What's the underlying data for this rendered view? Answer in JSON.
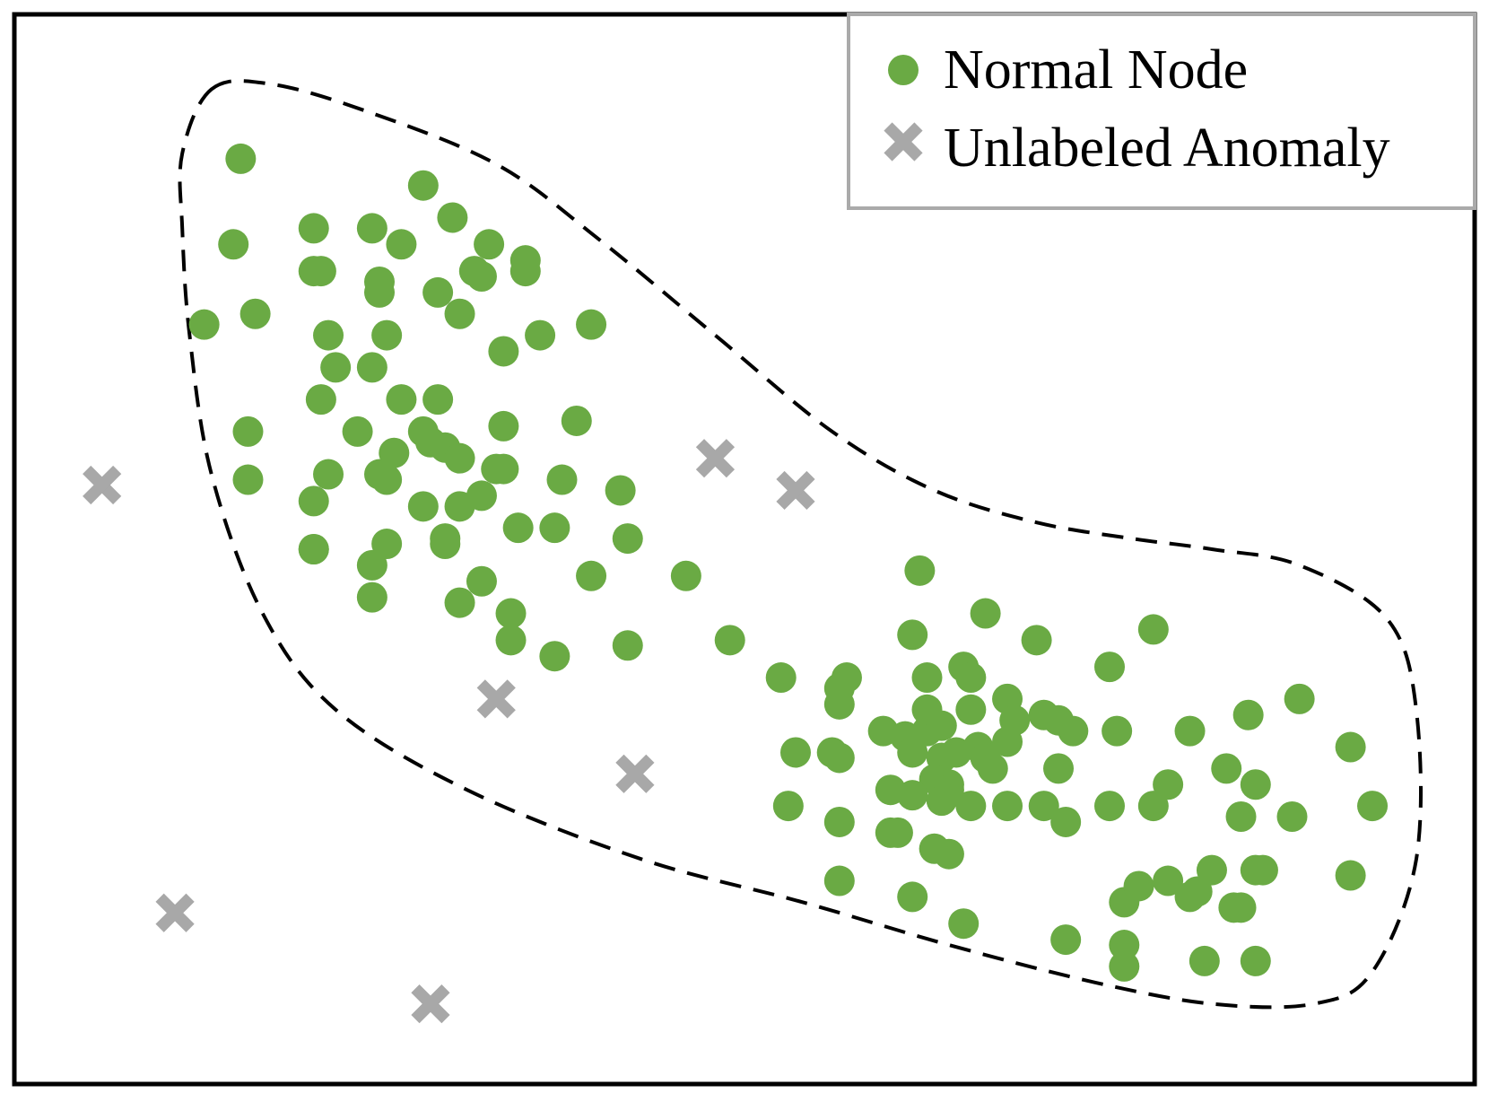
{
  "chart_data": {
    "type": "scatter",
    "title": "",
    "xlabel": "",
    "ylabel": "",
    "xlim": [
      0,
      100
    ],
    "ylim": [
      0,
      100
    ],
    "grid": false,
    "legend_position": "top-right",
    "colors": {
      "normal": "#6aaa44",
      "anomaly": "#a8a8a8",
      "boundary": "#000000",
      "frame": "#000000",
      "legend_border": "#aaaaaa"
    },
    "boundary": {
      "style": "dashed",
      "description": "normal region",
      "points": [
        [
          13.5,
          93
        ],
        [
          17.5,
          93.5
        ],
        [
          24,
          91
        ],
        [
          33,
          86
        ],
        [
          40,
          79
        ],
        [
          48,
          70
        ],
        [
          56,
          61
        ],
        [
          63,
          55.5
        ],
        [
          70,
          52.5
        ],
        [
          76.5,
          51
        ],
        [
          82,
          50
        ],
        [
          88,
          48.5
        ],
        [
          94,
          43.5
        ],
        [
          96,
          35
        ],
        [
          96,
          21
        ],
        [
          93,
          10.5
        ],
        [
          89,
          7.5
        ],
        [
          82,
          7.5
        ],
        [
          74,
          9.5
        ],
        [
          64,
          13
        ],
        [
          54,
          17
        ],
        [
          43,
          21
        ],
        [
          31,
          27.5
        ],
        [
          22,
          35
        ],
        [
          17,
          44
        ],
        [
          13.5,
          57
        ],
        [
          12,
          70
        ],
        [
          11.5,
          80
        ],
        [
          11.5,
          87
        ]
      ]
    },
    "series": [
      {
        "name": "Normal Node",
        "marker": "circle",
        "points": [
          [
            15.5,
            86.5
          ],
          [
            15,
            78.5
          ],
          [
            20.5,
            80
          ],
          [
            16.5,
            72
          ],
          [
            13,
            71
          ],
          [
            21,
            76
          ],
          [
            25,
            75
          ],
          [
            20.5,
            76
          ],
          [
            21.5,
            70
          ],
          [
            22,
            67
          ],
          [
            24.5,
            80
          ],
          [
            26.5,
            78.5
          ],
          [
            25,
            74
          ],
          [
            25.5,
            70
          ],
          [
            24.5,
            67
          ],
          [
            28,
            84
          ],
          [
            30,
            81
          ],
          [
            29,
            74
          ],
          [
            30.5,
            72
          ],
          [
            32.5,
            78.5
          ],
          [
            31.5,
            76
          ],
          [
            32,
            75.5
          ],
          [
            35,
            77
          ],
          [
            36,
            70
          ],
          [
            33.5,
            68.5
          ],
          [
            35,
            76
          ],
          [
            39.5,
            71
          ],
          [
            21,
            64
          ],
          [
            23.5,
            61
          ],
          [
            26.5,
            64
          ],
          [
            29,
            64
          ],
          [
            28,
            61
          ],
          [
            28.5,
            60
          ],
          [
            33.5,
            61.5
          ],
          [
            38.5,
            62
          ],
          [
            26,
            59
          ],
          [
            29.5,
            59.5
          ],
          [
            16,
            61
          ],
          [
            16,
            56.5
          ],
          [
            21.5,
            57
          ],
          [
            20.5,
            54.5
          ],
          [
            20.5,
            50
          ],
          [
            25.5,
            56.5
          ],
          [
            25,
            57
          ],
          [
            28,
            54
          ],
          [
            30.5,
            54
          ],
          [
            30.5,
            58.5
          ],
          [
            33.5,
            57.5
          ],
          [
            33,
            57.5
          ],
          [
            32,
            55
          ],
          [
            34.5,
            52
          ],
          [
            37,
            52
          ],
          [
            37.5,
            56.5
          ],
          [
            41.5,
            55.5
          ],
          [
            42,
            51
          ],
          [
            30.5,
            45
          ],
          [
            32,
            47
          ],
          [
            34,
            44
          ],
          [
            39.5,
            47.5
          ],
          [
            24.5,
            48.5
          ],
          [
            29.5,
            50.5
          ],
          [
            29.5,
            51
          ],
          [
            20.5,
            50
          ],
          [
            24.5,
            45.5
          ],
          [
            25.5,
            50.5
          ],
          [
            34,
            41.5
          ],
          [
            37,
            40
          ],
          [
            42,
            41
          ],
          [
            46,
            47.5
          ],
          [
            49,
            41.5
          ],
          [
            62,
            48
          ],
          [
            61.5,
            42
          ],
          [
            66.5,
            44
          ],
          [
            70,
            41.5
          ],
          [
            78,
            42.5
          ],
          [
            65,
            39
          ],
          [
            75,
            39
          ],
          [
            72.5,
            33
          ],
          [
            52.5,
            38
          ],
          [
            56.5,
            35.5
          ],
          [
            57,
            38
          ],
          [
            56.5,
            37
          ],
          [
            62.5,
            38
          ],
          [
            65.5,
            38
          ],
          [
            65.5,
            35
          ],
          [
            68,
            36
          ],
          [
            68.5,
            34
          ],
          [
            70.5,
            34.5
          ],
          [
            71.5,
            34
          ],
          [
            75.5,
            33
          ],
          [
            80.5,
            33
          ],
          [
            84.5,
            34.5
          ],
          [
            88,
            36
          ],
          [
            91.5,
            31.5
          ],
          [
            59.5,
            33
          ],
          [
            61,
            32.5
          ],
          [
            62.5,
            33
          ],
          [
            62.5,
            35
          ],
          [
            63.5,
            33.5
          ],
          [
            66,
            31.5
          ],
          [
            68,
            32
          ],
          [
            71.5,
            29.5
          ],
          [
            56.5,
            30.5
          ],
          [
            53.5,
            31
          ],
          [
            56,
            31
          ],
          [
            61.5,
            31
          ],
          [
            63.5,
            30.5
          ],
          [
            64.5,
            31
          ],
          [
            66.5,
            30.5
          ],
          [
            67,
            29.5
          ],
          [
            63,
            28.5
          ],
          [
            61.5,
            27
          ],
          [
            60,
            27.5
          ],
          [
            64,
            28
          ],
          [
            64,
            27.5
          ],
          [
            63.5,
            26.5
          ],
          [
            65.5,
            26
          ],
          [
            68,
            26
          ],
          [
            70.5,
            26
          ],
          [
            72,
            24.5
          ],
          [
            75,
            26
          ],
          [
            78,
            26
          ],
          [
            79,
            28
          ],
          [
            83,
            29.5
          ],
          [
            85,
            28
          ],
          [
            84,
            25
          ],
          [
            87.5,
            25
          ],
          [
            93,
            26
          ],
          [
            53,
            26
          ],
          [
            56.5,
            24.5
          ],
          [
            60,
            23.5
          ],
          [
            60.5,
            23.5
          ],
          [
            63,
            22
          ],
          [
            64,
            21.5
          ],
          [
            56.5,
            19
          ],
          [
            61.5,
            17.5
          ],
          [
            65,
            15
          ],
          [
            72,
            13.5
          ],
          [
            76,
            13
          ],
          [
            76,
            17
          ],
          [
            77,
            18.5
          ],
          [
            79,
            19
          ],
          [
            80.5,
            17.5
          ],
          [
            81,
            18
          ],
          [
            82,
            20
          ],
          [
            83.5,
            16.5
          ],
          [
            84,
            16.5
          ],
          [
            85,
            20
          ],
          [
            85.5,
            20
          ],
          [
            91.5,
            19.5
          ],
          [
            81.5,
            11.5
          ],
          [
            85,
            11.5
          ],
          [
            76,
            11
          ]
        ]
      },
      {
        "name": "Unlabeled Anomaly",
        "marker": "x",
        "points": [
          [
            6,
            56
          ],
          [
            48,
            58.5
          ],
          [
            53.5,
            55.5
          ],
          [
            33,
            36
          ],
          [
            42.5,
            29
          ],
          [
            11,
            16
          ],
          [
            28.5,
            7.5
          ]
        ]
      }
    ]
  }
}
